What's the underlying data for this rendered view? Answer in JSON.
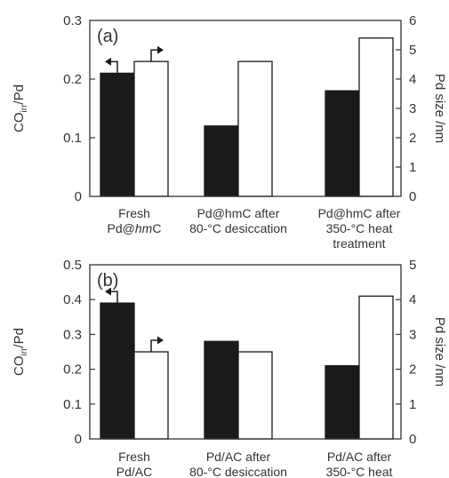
{
  "chart_data": [
    {
      "type": "bar",
      "panel_label": "(a)",
      "left_axis": {
        "label_main": "CO",
        "label_sub": "irr",
        "label_tail": "/Pd",
        "ylim": [
          0,
          0.3
        ],
        "ticks": [
          "0",
          "0.1",
          "0.2",
          "0.3"
        ],
        "tick_values": [
          0,
          0.1,
          0.2,
          0.3
        ]
      },
      "right_axis": {
        "label": "Pd size /nm",
        "ylim": [
          0,
          6
        ],
        "ticks": [
          "0",
          "1",
          "2",
          "3",
          "4",
          "5",
          "6"
        ],
        "tick_values": [
          0,
          1,
          2,
          3,
          4,
          5,
          6
        ]
      },
      "categories": [
        {
          "lines": [
            {
              "parts": [
                {
                  "t": "Fresh",
                  "i": false
                }
              ]
            },
            {
              "parts": [
                {
                  "t": "Pd@",
                  "i": false
                },
                {
                  "t": "hm",
                  "i": true
                },
                {
                  "t": "C",
                  "i": false
                }
              ]
            }
          ]
        },
        {
          "lines": [
            {
              "parts": [
                {
                  "t": "Pd@hmC after",
                  "i": false
                }
              ]
            },
            {
              "parts": [
                {
                  "t": "80-°C desiccation",
                  "i": false
                }
              ]
            }
          ]
        },
        {
          "lines": [
            {
              "parts": [
                {
                  "t": "Pd@hmC after",
                  "i": false
                }
              ]
            },
            {
              "parts": [
                {
                  "t": "350-°C heat",
                  "i": false
                }
              ]
            },
            {
              "parts": [
                {
                  "t": "treatment",
                  "i": false
                }
              ]
            }
          ]
        }
      ],
      "series": [
        {
          "axis": "left",
          "fill": "#1a1a1a",
          "values": [
            0.21,
            0.12,
            0.18
          ]
        },
        {
          "axis": "right",
          "fill": "#ffffff",
          "values": [
            4.6,
            4.6,
            5.4
          ]
        }
      ],
      "grid": false
    },
    {
      "type": "bar",
      "panel_label": "(b)",
      "left_axis": {
        "label_main": "CO",
        "label_sub": "irr",
        "label_tail": "/Pd",
        "ylim": [
          0,
          0.5
        ],
        "ticks": [
          "0",
          "0.1",
          "0.2",
          "0.3",
          "0.4",
          "0.5"
        ],
        "tick_values": [
          0,
          0.1,
          0.2,
          0.3,
          0.4,
          0.5
        ]
      },
      "right_axis": {
        "label": "Pd size /nm",
        "ylim": [
          0,
          5
        ],
        "ticks": [
          "0",
          "1",
          "2",
          "3",
          "4",
          "5"
        ],
        "tick_values": [
          0,
          1,
          2,
          3,
          4,
          5
        ]
      },
      "categories": [
        {
          "lines": [
            {
              "parts": [
                {
                  "t": "Fresh",
                  "i": false
                }
              ]
            },
            {
              "parts": [
                {
                  "t": "Pd/AC",
                  "i": false
                }
              ]
            }
          ]
        },
        {
          "lines": [
            {
              "parts": [
                {
                  "t": "Pd/AC after",
                  "i": false
                }
              ]
            },
            {
              "parts": [
                {
                  "t": "80-°C desiccation",
                  "i": false
                }
              ]
            }
          ]
        },
        {
          "lines": [
            {
              "parts": [
                {
                  "t": "Pd/AC after",
                  "i": false
                }
              ]
            },
            {
              "parts": [
                {
                  "t": "350-°C heat",
                  "i": false
                }
              ]
            }
          ]
        }
      ],
      "series": [
        {
          "axis": "left",
          "fill": "#1a1a1a",
          "values": [
            0.39,
            0.28,
            0.21
          ]
        },
        {
          "axis": "right",
          "fill": "#ffffff",
          "values": [
            2.5,
            2.5,
            4.1
          ]
        }
      ],
      "grid": false
    }
  ]
}
